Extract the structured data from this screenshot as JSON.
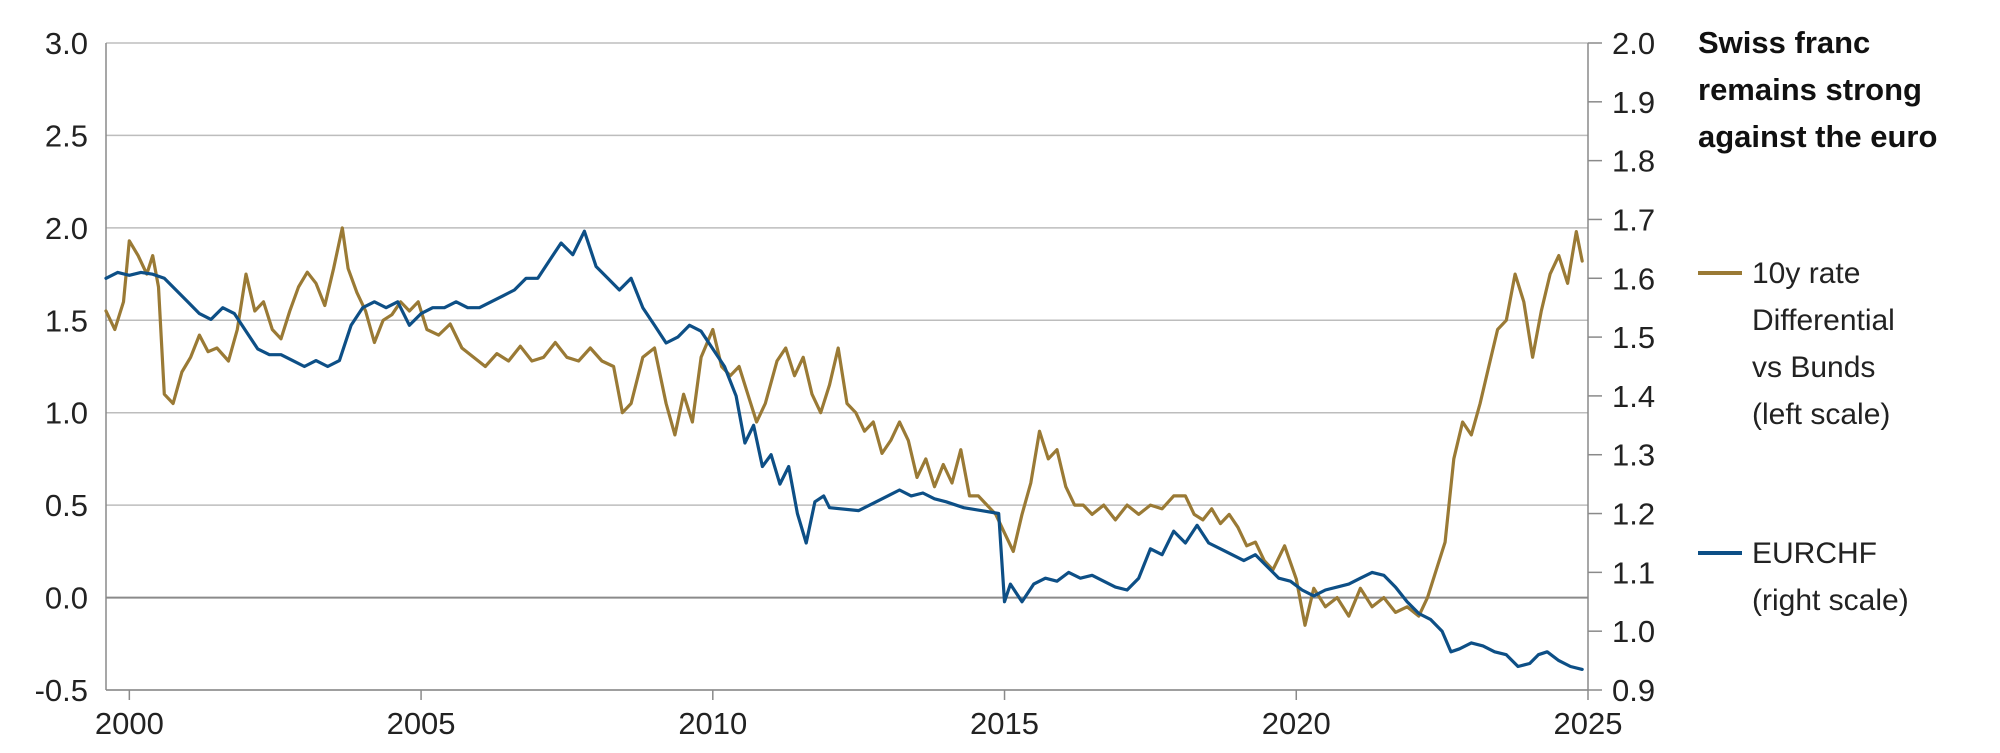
{
  "chart_data": {
    "type": "line",
    "title_lines": [
      "Swiss franc",
      "remains strong",
      "against the euro"
    ],
    "x_ticks": [
      "2000",
      "2005",
      "2010",
      "2015",
      "2020",
      "2025"
    ],
    "x_tick_values": [
      2000,
      2005,
      2010,
      2015,
      2020,
      2025
    ],
    "xlim": [
      1999.6,
      2025.0
    ],
    "left_axis": {
      "ylim": [
        -0.5,
        3.0
      ],
      "ticks": [
        "3.0",
        "2.5",
        "2.0",
        "1.5",
        "1.0",
        "0.5",
        "0.0",
        "-0.5"
      ],
      "tick_values": [
        3.0,
        2.5,
        2.0,
        1.5,
        1.0,
        0.5,
        0.0,
        -0.5
      ]
    },
    "right_axis": {
      "ylim": [
        0.9,
        2.0
      ],
      "ticks": [
        "2.0",
        "1.9",
        "1.8",
        "1.7",
        "1.6",
        "1.5",
        "1.4",
        "1.3",
        "1.2",
        "1.1",
        "1.0",
        "0.9"
      ],
      "tick_values": [
        2.0,
        1.9,
        1.8,
        1.7,
        1.6,
        1.5,
        1.4,
        1.3,
        1.2,
        1.1,
        1.0,
        0.9
      ]
    },
    "grid": true,
    "legend_position": "right",
    "series": [
      {
        "name": "10y rate Differential vs Bunds (left scale)",
        "legend_lines": [
          "10y rate",
          "Differential",
          "vs Bunds",
          "(left scale)"
        ],
        "axis": "left",
        "color": "#9a7a35",
        "points": [
          [
            1999.6,
            1.55
          ],
          [
            1999.75,
            1.45
          ],
          [
            1999.9,
            1.6
          ],
          [
            2000.0,
            1.93
          ],
          [
            2000.15,
            1.85
          ],
          [
            2000.3,
            1.75
          ],
          [
            2000.4,
            1.85
          ],
          [
            2000.5,
            1.68
          ],
          [
            2000.6,
            1.1
          ],
          [
            2000.75,
            1.05
          ],
          [
            2000.9,
            1.22
          ],
          [
            2001.05,
            1.3
          ],
          [
            2001.2,
            1.42
          ],
          [
            2001.35,
            1.33
          ],
          [
            2001.5,
            1.35
          ],
          [
            2001.7,
            1.28
          ],
          [
            2001.85,
            1.45
          ],
          [
            2002.0,
            1.75
          ],
          [
            2002.15,
            1.55
          ],
          [
            2002.3,
            1.6
          ],
          [
            2002.45,
            1.45
          ],
          [
            2002.6,
            1.4
          ],
          [
            2002.75,
            1.55
          ],
          [
            2002.9,
            1.68
          ],
          [
            2003.05,
            1.76
          ],
          [
            2003.2,
            1.7
          ],
          [
            2003.35,
            1.58
          ],
          [
            2003.5,
            1.78
          ],
          [
            2003.65,
            2.0
          ],
          [
            2003.75,
            1.78
          ],
          [
            2003.9,
            1.65
          ],
          [
            2004.05,
            1.55
          ],
          [
            2004.2,
            1.38
          ],
          [
            2004.35,
            1.5
          ],
          [
            2004.5,
            1.53
          ],
          [
            2004.65,
            1.6
          ],
          [
            2004.8,
            1.55
          ],
          [
            2004.95,
            1.6
          ],
          [
            2005.1,
            1.45
          ],
          [
            2005.3,
            1.42
          ],
          [
            2005.5,
            1.48
          ],
          [
            2005.7,
            1.35
          ],
          [
            2005.9,
            1.3
          ],
          [
            2006.1,
            1.25
          ],
          [
            2006.3,
            1.32
          ],
          [
            2006.5,
            1.28
          ],
          [
            2006.7,
            1.36
          ],
          [
            2006.9,
            1.28
          ],
          [
            2007.1,
            1.3
          ],
          [
            2007.3,
            1.38
          ],
          [
            2007.5,
            1.3
          ],
          [
            2007.7,
            1.28
          ],
          [
            2007.9,
            1.35
          ],
          [
            2008.1,
            1.28
          ],
          [
            2008.3,
            1.25
          ],
          [
            2008.45,
            1.0
          ],
          [
            2008.6,
            1.05
          ],
          [
            2008.8,
            1.3
          ],
          [
            2009.0,
            1.35
          ],
          [
            2009.2,
            1.05
          ],
          [
            2009.35,
            0.88
          ],
          [
            2009.5,
            1.1
          ],
          [
            2009.65,
            0.95
          ],
          [
            2009.8,
            1.3
          ],
          [
            2010.0,
            1.45
          ],
          [
            2010.15,
            1.25
          ],
          [
            2010.3,
            1.2
          ],
          [
            2010.45,
            1.25
          ],
          [
            2010.6,
            1.1
          ],
          [
            2010.75,
            0.95
          ],
          [
            2010.9,
            1.05
          ],
          [
            2011.1,
            1.28
          ],
          [
            2011.25,
            1.35
          ],
          [
            2011.4,
            1.2
          ],
          [
            2011.55,
            1.3
          ],
          [
            2011.7,
            1.1
          ],
          [
            2011.85,
            1.0
          ],
          [
            2012.0,
            1.15
          ],
          [
            2012.15,
            1.35
          ],
          [
            2012.3,
            1.05
          ],
          [
            2012.45,
            1.0
          ],
          [
            2012.6,
            0.9
          ],
          [
            2012.75,
            0.95
          ],
          [
            2012.9,
            0.78
          ],
          [
            2013.05,
            0.85
          ],
          [
            2013.2,
            0.95
          ],
          [
            2013.35,
            0.85
          ],
          [
            2013.5,
            0.65
          ],
          [
            2013.65,
            0.75
          ],
          [
            2013.8,
            0.6
          ],
          [
            2013.95,
            0.72
          ],
          [
            2014.1,
            0.62
          ],
          [
            2014.25,
            0.8
          ],
          [
            2014.4,
            0.55
          ],
          [
            2014.55,
            0.55
          ],
          [
            2014.7,
            0.5
          ],
          [
            2014.85,
            0.45
          ],
          [
            2015.0,
            0.35
          ],
          [
            2015.15,
            0.25
          ],
          [
            2015.3,
            0.45
          ],
          [
            2015.45,
            0.62
          ],
          [
            2015.6,
            0.9
          ],
          [
            2015.75,
            0.75
          ],
          [
            2015.9,
            0.8
          ],
          [
            2016.05,
            0.6
          ],
          [
            2016.2,
            0.5
          ],
          [
            2016.35,
            0.5
          ],
          [
            2016.5,
            0.45
          ],
          [
            2016.7,
            0.5
          ],
          [
            2016.9,
            0.42
          ],
          [
            2017.1,
            0.5
          ],
          [
            2017.3,
            0.45
          ],
          [
            2017.5,
            0.5
          ],
          [
            2017.7,
            0.48
          ],
          [
            2017.9,
            0.55
          ],
          [
            2018.1,
            0.55
          ],
          [
            2018.25,
            0.45
          ],
          [
            2018.4,
            0.42
          ],
          [
            2018.55,
            0.48
          ],
          [
            2018.7,
            0.4
          ],
          [
            2018.85,
            0.45
          ],
          [
            2019.0,
            0.38
          ],
          [
            2019.15,
            0.28
          ],
          [
            2019.3,
            0.3
          ],
          [
            2019.45,
            0.2
          ],
          [
            2019.6,
            0.15
          ],
          [
            2019.8,
            0.28
          ],
          [
            2020.0,
            0.1
          ],
          [
            2020.15,
            -0.15
          ],
          [
            2020.3,
            0.05
          ],
          [
            2020.5,
            -0.05
          ],
          [
            2020.7,
            0.0
          ],
          [
            2020.9,
            -0.1
          ],
          [
            2021.1,
            0.05
          ],
          [
            2021.3,
            -0.05
          ],
          [
            2021.5,
            0.0
          ],
          [
            2021.7,
            -0.08
          ],
          [
            2021.9,
            -0.05
          ],
          [
            2022.1,
            -0.1
          ],
          [
            2022.25,
            0.0
          ],
          [
            2022.4,
            0.15
          ],
          [
            2022.55,
            0.3
          ],
          [
            2022.7,
            0.75
          ],
          [
            2022.85,
            0.95
          ],
          [
            2023.0,
            0.88
          ],
          [
            2023.15,
            1.05
          ],
          [
            2023.3,
            1.25
          ],
          [
            2023.45,
            1.45
          ],
          [
            2023.6,
            1.5
          ],
          [
            2023.75,
            1.75
          ],
          [
            2023.9,
            1.6
          ],
          [
            2024.05,
            1.3
          ],
          [
            2024.2,
            1.55
          ],
          [
            2024.35,
            1.75
          ],
          [
            2024.5,
            1.85
          ],
          [
            2024.65,
            1.7
          ],
          [
            2024.8,
            1.98
          ],
          [
            2024.9,
            1.82
          ]
        ]
      },
      {
        "name": "EURCHF (right scale)",
        "legend_lines": [
          "EURCHF",
          "(right scale)"
        ],
        "axis": "right",
        "color": "#0d4f86",
        "points": [
          [
            1999.6,
            1.6
          ],
          [
            1999.8,
            1.61
          ],
          [
            2000.0,
            1.605
          ],
          [
            2000.2,
            1.61
          ],
          [
            2000.4,
            1.607
          ],
          [
            2000.6,
            1.6
          ],
          [
            2000.8,
            1.58
          ],
          [
            2001.0,
            1.56
          ],
          [
            2001.2,
            1.54
          ],
          [
            2001.4,
            1.53
          ],
          [
            2001.6,
            1.55
          ],
          [
            2001.8,
            1.54
          ],
          [
            2002.0,
            1.51
          ],
          [
            2002.2,
            1.48
          ],
          [
            2002.4,
            1.47
          ],
          [
            2002.6,
            1.47
          ],
          [
            2002.8,
            1.46
          ],
          [
            2003.0,
            1.45
          ],
          [
            2003.2,
            1.46
          ],
          [
            2003.4,
            1.45
          ],
          [
            2003.6,
            1.46
          ],
          [
            2003.8,
            1.52
          ],
          [
            2004.0,
            1.55
          ],
          [
            2004.2,
            1.56
          ],
          [
            2004.4,
            1.55
          ],
          [
            2004.6,
            1.56
          ],
          [
            2004.8,
            1.52
          ],
          [
            2005.0,
            1.54
          ],
          [
            2005.2,
            1.55
          ],
          [
            2005.4,
            1.55
          ],
          [
            2005.6,
            1.56
          ],
          [
            2005.8,
            1.55
          ],
          [
            2006.0,
            1.55
          ],
          [
            2006.2,
            1.56
          ],
          [
            2006.4,
            1.57
          ],
          [
            2006.6,
            1.58
          ],
          [
            2006.8,
            1.6
          ],
          [
            2007.0,
            1.6
          ],
          [
            2007.2,
            1.63
          ],
          [
            2007.4,
            1.66
          ],
          [
            2007.6,
            1.64
          ],
          [
            2007.8,
            1.68
          ],
          [
            2008.0,
            1.62
          ],
          [
            2008.2,
            1.6
          ],
          [
            2008.4,
            1.58
          ],
          [
            2008.6,
            1.6
          ],
          [
            2008.8,
            1.55
          ],
          [
            2009.0,
            1.52
          ],
          [
            2009.2,
            1.49
          ],
          [
            2009.4,
            1.5
          ],
          [
            2009.6,
            1.52
          ],
          [
            2009.8,
            1.51
          ],
          [
            2010.0,
            1.48
          ],
          [
            2010.2,
            1.45
          ],
          [
            2010.4,
            1.4
          ],
          [
            2010.55,
            1.32
          ],
          [
            2010.7,
            1.35
          ],
          [
            2010.85,
            1.28
          ],
          [
            2011.0,
            1.3
          ],
          [
            2011.15,
            1.25
          ],
          [
            2011.3,
            1.28
          ],
          [
            2011.45,
            1.2
          ],
          [
            2011.6,
            1.15
          ],
          [
            2011.75,
            1.22
          ],
          [
            2011.9,
            1.23
          ],
          [
            2012.0,
            1.21
          ],
          [
            2012.5,
            1.205
          ],
          [
            2013.0,
            1.23
          ],
          [
            2013.2,
            1.24
          ],
          [
            2013.4,
            1.23
          ],
          [
            2013.6,
            1.235
          ],
          [
            2013.8,
            1.225
          ],
          [
            2014.0,
            1.22
          ],
          [
            2014.3,
            1.21
          ],
          [
            2014.6,
            1.205
          ],
          [
            2014.9,
            1.2
          ],
          [
            2015.0,
            1.05
          ],
          [
            2015.1,
            1.08
          ],
          [
            2015.3,
            1.05
          ],
          [
            2015.5,
            1.08
          ],
          [
            2015.7,
            1.09
          ],
          [
            2015.9,
            1.085
          ],
          [
            2016.1,
            1.1
          ],
          [
            2016.3,
            1.09
          ],
          [
            2016.5,
            1.095
          ],
          [
            2016.7,
            1.085
          ],
          [
            2016.9,
            1.075
          ],
          [
            2017.1,
            1.07
          ],
          [
            2017.3,
            1.09
          ],
          [
            2017.5,
            1.14
          ],
          [
            2017.7,
            1.13
          ],
          [
            2017.9,
            1.17
          ],
          [
            2018.1,
            1.15
          ],
          [
            2018.3,
            1.18
          ],
          [
            2018.5,
            1.15
          ],
          [
            2018.7,
            1.14
          ],
          [
            2018.9,
            1.13
          ],
          [
            2019.1,
            1.12
          ],
          [
            2019.3,
            1.13
          ],
          [
            2019.5,
            1.11
          ],
          [
            2019.7,
            1.09
          ],
          [
            2019.9,
            1.085
          ],
          [
            2020.1,
            1.07
          ],
          [
            2020.3,
            1.06
          ],
          [
            2020.5,
            1.07
          ],
          [
            2020.7,
            1.075
          ],
          [
            2020.9,
            1.08
          ],
          [
            2021.1,
            1.09
          ],
          [
            2021.3,
            1.1
          ],
          [
            2021.5,
            1.095
          ],
          [
            2021.7,
            1.075
          ],
          [
            2021.9,
            1.05
          ],
          [
            2022.1,
            1.03
          ],
          [
            2022.3,
            1.02
          ],
          [
            2022.5,
            1.0
          ],
          [
            2022.65,
            0.965
          ],
          [
            2022.8,
            0.97
          ],
          [
            2023.0,
            0.98
          ],
          [
            2023.2,
            0.975
          ],
          [
            2023.4,
            0.965
          ],
          [
            2023.6,
            0.96
          ],
          [
            2023.8,
            0.94
          ],
          [
            2024.0,
            0.945
          ],
          [
            2024.15,
            0.96
          ],
          [
            2024.3,
            0.965
          ],
          [
            2024.5,
            0.95
          ],
          [
            2024.7,
            0.94
          ],
          [
            2024.9,
            0.935
          ]
        ]
      }
    ]
  }
}
